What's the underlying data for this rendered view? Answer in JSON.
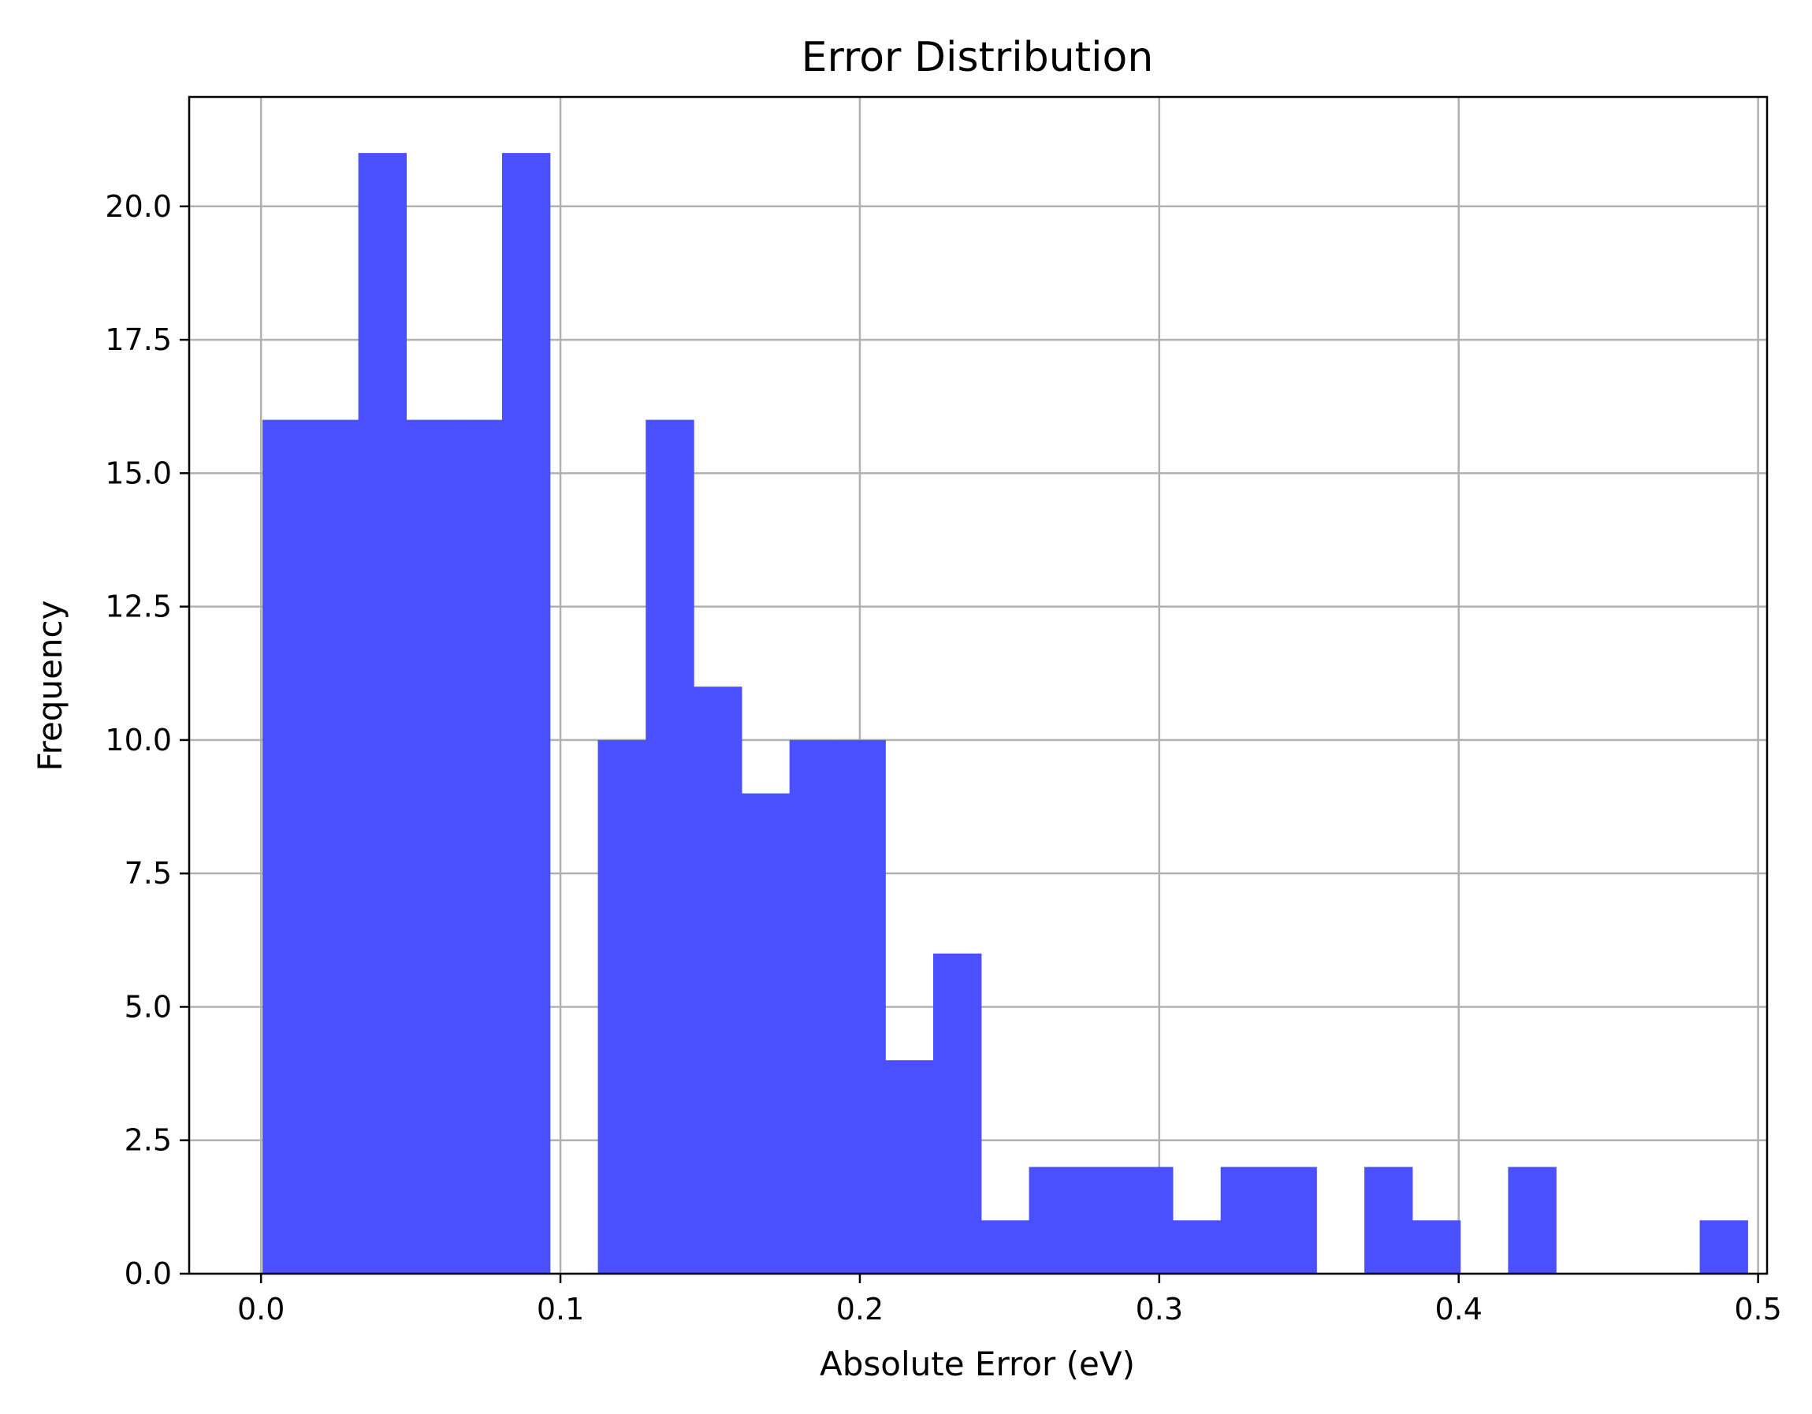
{
  "chart_data": {
    "type": "bar",
    "title": "Error Distribution",
    "xlabel": "Absolute Error (eV)",
    "ylabel": "Frequency",
    "xlim": [
      -0.024,
      0.503
    ],
    "ylim": [
      0,
      22.05
    ],
    "grid": true,
    "bar_color": "#4b50ff",
    "xticks": [
      "0.0",
      "0.1",
      "0.2",
      "0.3",
      "0.4",
      "0.5"
    ],
    "yticks": [
      "0.0",
      "2.5",
      "5.0",
      "7.5",
      "10.0",
      "12.5",
      "15.0",
      "17.5",
      "20.0"
    ],
    "bin_start": 0.0005,
    "bin_width": 0.016,
    "counts": [
      16,
      16,
      21,
      16,
      16,
      21,
      0,
      10,
      16,
      11,
      9,
      10,
      10,
      4,
      6,
      1,
      2,
      2,
      2,
      1,
      2,
      2,
      0,
      2,
      1,
      0,
      2,
      0,
      0,
      0,
      1
    ]
  }
}
